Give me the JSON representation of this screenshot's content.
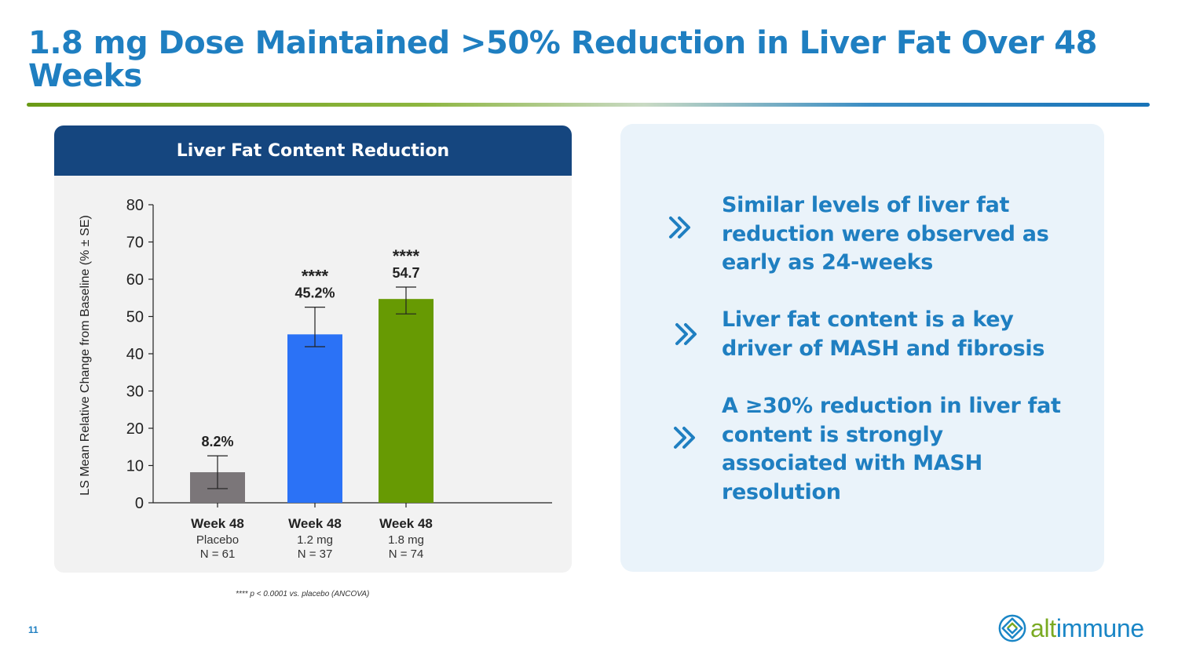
{
  "slide": {
    "title": "1.8 mg Dose Maintained >50% Reduction in Liver Fat Over 48 Weeks",
    "page_number": "11",
    "footnote": "**** p  < 0.0001 vs. placebo (ANCOVA)"
  },
  "bullets": [
    {
      "icon": "double-chevron-right-icon",
      "text": "Similar levels of liver fat reduction were observed as early as 24-weeks"
    },
    {
      "icon": "double-chevron-right-icon",
      "text": "Liver fat content is a key driver of MASH and fibrosis"
    },
    {
      "icon": "double-chevron-right-icon",
      "text": "A ≥30% reduction in liver fat content is strongly associated with MASH resolution"
    }
  ],
  "logo": {
    "part1": "alt",
    "part2": "immune",
    "icon": "altimmune-logo-icon"
  },
  "colors": {
    "title_blue": "#1f7fc1",
    "header_navy": "#15467f",
    "placebo_bar": "#7b7679",
    "dose_1_2_bar": "#2b72f6",
    "dose_1_8_bar": "#679a03",
    "logo_green": "#7aaa22",
    "logo_blue": "#1a86c6"
  },
  "chart_data": {
    "type": "bar",
    "title": "Liver Fat Content Reduction",
    "ylabel": "LS Mean Relative Change from Baseline (% ± SE)",
    "xlabel": "",
    "ylim": [
      0,
      80
    ],
    "yticks": [
      0,
      10,
      20,
      30,
      40,
      50,
      60,
      70,
      80
    ],
    "grid": false,
    "categories": [
      {
        "label": "Week 48",
        "sub": "Placebo",
        "n": "N = 61"
      },
      {
        "label": "Week 48",
        "sub": "1.2 mg",
        "n": "N = 37"
      },
      {
        "label": "Week 48",
        "sub": "1.8 mg",
        "n": "N = 74"
      }
    ],
    "values": [
      8.2,
      45.2,
      54.7
    ],
    "error": [
      {
        "low": 3.8,
        "high": 12.6
      },
      {
        "low": 41.9,
        "high": 52.5
      },
      {
        "low": 50.7,
        "high": 57.9
      }
    ],
    "data_labels": [
      "8.2%",
      "45.2%",
      "54.7"
    ],
    "significance": [
      "",
      "****",
      "****"
    ],
    "colors": [
      "#7b7679",
      "#2b72f6",
      "#679a03"
    ]
  }
}
